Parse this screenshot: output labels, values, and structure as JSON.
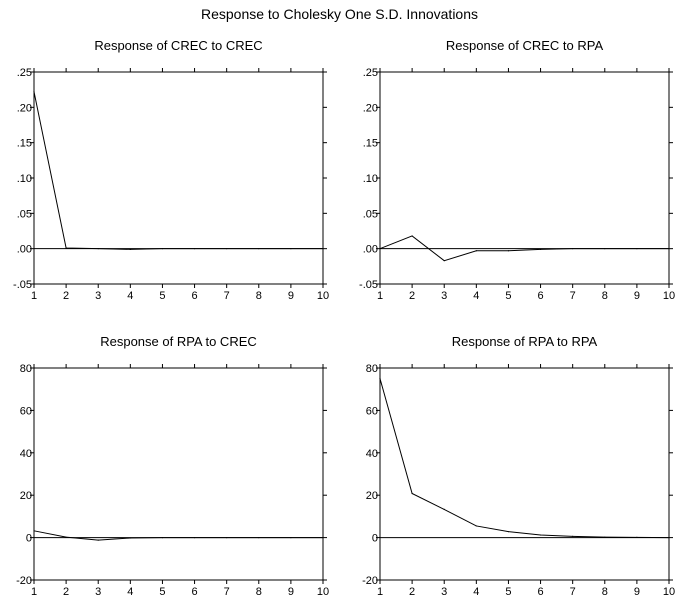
{
  "title": "Response to Cholesky One S.D. Innovations",
  "chart_data": [
    {
      "type": "line",
      "title": "Response of CREC to CREC",
      "x": [
        1,
        2,
        3,
        4,
        5,
        6,
        7,
        8,
        9,
        10
      ],
      "series": [
        {
          "values": [
            0.222,
            0.001,
            0.0,
            -0.001,
            0.0,
            0.0,
            0.0,
            0.0,
            0.0,
            0.0
          ]
        }
      ],
      "ylim": [
        -0.05,
        0.25
      ],
      "yticks": [
        -0.05,
        0.0,
        0.05,
        0.1,
        0.15,
        0.2,
        0.25
      ],
      "yticklabels": [
        "-.05",
        ".00",
        ".05",
        ".10",
        ".15",
        ".20",
        ".25"
      ],
      "xticklabels": [
        "1",
        "2",
        "3",
        "4",
        "5",
        "6",
        "7",
        "8",
        "9",
        "10"
      ],
      "zero_line": true
    },
    {
      "type": "line",
      "title": "Response of CREC to RPA",
      "x": [
        1,
        2,
        3,
        4,
        5,
        6,
        7,
        8,
        9,
        10
      ],
      "series": [
        {
          "values": [
            0.0,
            0.018,
            -0.017,
            -0.003,
            -0.003,
            -0.001,
            0.0,
            0.0,
            0.0,
            0.0
          ]
        }
      ],
      "ylim": [
        -0.05,
        0.25
      ],
      "yticks": [
        -0.05,
        0.0,
        0.05,
        0.1,
        0.15,
        0.2,
        0.25
      ],
      "yticklabels": [
        "-.05",
        ".00",
        ".05",
        ".10",
        ".15",
        ".20",
        ".25"
      ],
      "xticklabels": [
        "1",
        "2",
        "3",
        "4",
        "5",
        "6",
        "7",
        "8",
        "9",
        "10"
      ],
      "zero_line": true
    },
    {
      "type": "line",
      "title": "Response of RPA to CREC",
      "x": [
        1,
        2,
        3,
        4,
        5,
        6,
        7,
        8,
        9,
        10
      ],
      "series": [
        {
          "values": [
            3.2,
            0.2,
            -1.2,
            -0.2,
            0.0,
            0.0,
            0.0,
            0.0,
            0.0,
            0.0
          ]
        }
      ],
      "ylim": [
        -20,
        80
      ],
      "yticks": [
        -20,
        0,
        20,
        40,
        60,
        80
      ],
      "yticklabels": [
        "-20",
        "0",
        "20",
        "40",
        "60",
        "80"
      ],
      "xticklabels": [
        "1",
        "2",
        "3",
        "4",
        "5",
        "6",
        "7",
        "8",
        "9",
        "10"
      ],
      "zero_line": true
    },
    {
      "type": "line",
      "title": "Response of RPA to RPA",
      "x": [
        1,
        2,
        3,
        4,
        5,
        6,
        7,
        8,
        9,
        10
      ],
      "series": [
        {
          "values": [
            75.0,
            20.8,
            13.3,
            5.5,
            2.8,
            1.2,
            0.6,
            0.2,
            0.1,
            0.0
          ]
        }
      ],
      "ylim": [
        -20,
        80
      ],
      "yticks": [
        -20,
        0,
        20,
        40,
        60,
        80
      ],
      "yticklabels": [
        "-20",
        "0",
        "20",
        "40",
        "60",
        "80"
      ],
      "xticklabels": [
        "1",
        "2",
        "3",
        "4",
        "5",
        "6",
        "7",
        "8",
        "9",
        "10"
      ],
      "zero_line": true
    }
  ]
}
